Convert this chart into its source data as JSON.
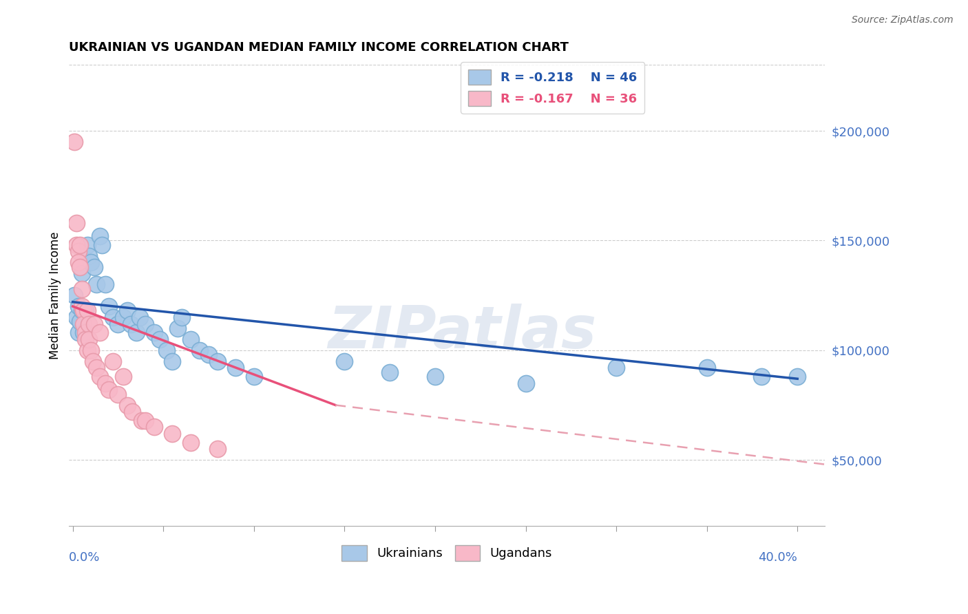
{
  "title": "UKRAINIAN VS UGANDAN MEDIAN FAMILY INCOME CORRELATION CHART",
  "source": "Source: ZipAtlas.com",
  "ylabel": "Median Family Income",
  "watermark": "ZIPatlas",
  "blue_label": "Ukrainians",
  "pink_label": "Ugandans",
  "blue_R": "R = -0.218",
  "blue_N": "N = 46",
  "pink_R": "R = -0.167",
  "pink_N": "N = 36",
  "blue_color": "#a8c8e8",
  "blue_edge_color": "#7aaed4",
  "blue_line_color": "#2255aa",
  "pink_color": "#f8b8c8",
  "pink_edge_color": "#e89aaa",
  "pink_line_color": "#e8507a",
  "pink_dash_color": "#e8a0b0",
  "bg_color": "#ffffff",
  "grid_color": "#cccccc",
  "ytick_color": "#4472c4",
  "xtick_color": "#4472c4",
  "xlim": [
    -0.002,
    0.415
  ],
  "ylim": [
    20000,
    230000
  ],
  "yticks": [
    50000,
    100000,
    150000,
    200000
  ],
  "ytick_labels": [
    "$50,000",
    "$100,000",
    "$150,000",
    "$200,000"
  ],
  "xticks": [
    0.0,
    0.05,
    0.1,
    0.15,
    0.2,
    0.25,
    0.3,
    0.35,
    0.4
  ],
  "blue_points": [
    [
      0.001,
      125000
    ],
    [
      0.002,
      115000
    ],
    [
      0.003,
      108000
    ],
    [
      0.003,
      120000
    ],
    [
      0.004,
      113000
    ],
    [
      0.005,
      118000
    ],
    [
      0.005,
      135000
    ],
    [
      0.006,
      108000
    ],
    [
      0.007,
      118000
    ],
    [
      0.008,
      148000
    ],
    [
      0.009,
      143000
    ],
    [
      0.01,
      140000
    ],
    [
      0.012,
      138000
    ],
    [
      0.013,
      130000
    ],
    [
      0.015,
      152000
    ],
    [
      0.016,
      148000
    ],
    [
      0.018,
      130000
    ],
    [
      0.02,
      120000
    ],
    [
      0.022,
      115000
    ],
    [
      0.025,
      112000
    ],
    [
      0.028,
      115000
    ],
    [
      0.03,
      118000
    ],
    [
      0.032,
      112000
    ],
    [
      0.035,
      108000
    ],
    [
      0.037,
      115000
    ],
    [
      0.04,
      112000
    ],
    [
      0.045,
      108000
    ],
    [
      0.048,
      105000
    ],
    [
      0.052,
      100000
    ],
    [
      0.055,
      95000
    ],
    [
      0.058,
      110000
    ],
    [
      0.06,
      115000
    ],
    [
      0.065,
      105000
    ],
    [
      0.07,
      100000
    ],
    [
      0.075,
      98000
    ],
    [
      0.08,
      95000
    ],
    [
      0.09,
      92000
    ],
    [
      0.1,
      88000
    ],
    [
      0.15,
      95000
    ],
    [
      0.175,
      90000
    ],
    [
      0.2,
      88000
    ],
    [
      0.25,
      85000
    ],
    [
      0.3,
      92000
    ],
    [
      0.35,
      92000
    ],
    [
      0.38,
      88000
    ],
    [
      0.4,
      88000
    ]
  ],
  "pink_points": [
    [
      0.001,
      195000
    ],
    [
      0.002,
      158000
    ],
    [
      0.002,
      148000
    ],
    [
      0.003,
      145000
    ],
    [
      0.003,
      140000
    ],
    [
      0.004,
      148000
    ],
    [
      0.004,
      138000
    ],
    [
      0.005,
      128000
    ],
    [
      0.005,
      120000
    ],
    [
      0.006,
      118000
    ],
    [
      0.006,
      112000
    ],
    [
      0.007,
      108000
    ],
    [
      0.007,
      105000
    ],
    [
      0.008,
      118000
    ],
    [
      0.008,
      100000
    ],
    [
      0.009,
      112000
    ],
    [
      0.009,
      105000
    ],
    [
      0.01,
      100000
    ],
    [
      0.011,
      95000
    ],
    [
      0.012,
      112000
    ],
    [
      0.013,
      92000
    ],
    [
      0.015,
      108000
    ],
    [
      0.015,
      88000
    ],
    [
      0.018,
      85000
    ],
    [
      0.02,
      82000
    ],
    [
      0.022,
      95000
    ],
    [
      0.025,
      80000
    ],
    [
      0.028,
      88000
    ],
    [
      0.03,
      75000
    ],
    [
      0.033,
      72000
    ],
    [
      0.038,
      68000
    ],
    [
      0.04,
      68000
    ],
    [
      0.045,
      65000
    ],
    [
      0.055,
      62000
    ],
    [
      0.065,
      58000
    ],
    [
      0.08,
      55000
    ]
  ],
  "blue_trendline": [
    [
      0.0,
      122000
    ],
    [
      0.4,
      87000
    ]
  ],
  "pink_trendline_solid": [
    [
      0.0,
      120000
    ],
    [
      0.145,
      75000
    ]
  ],
  "pink_trendline_dash": [
    [
      0.145,
      75000
    ],
    [
      0.415,
      48000
    ]
  ]
}
